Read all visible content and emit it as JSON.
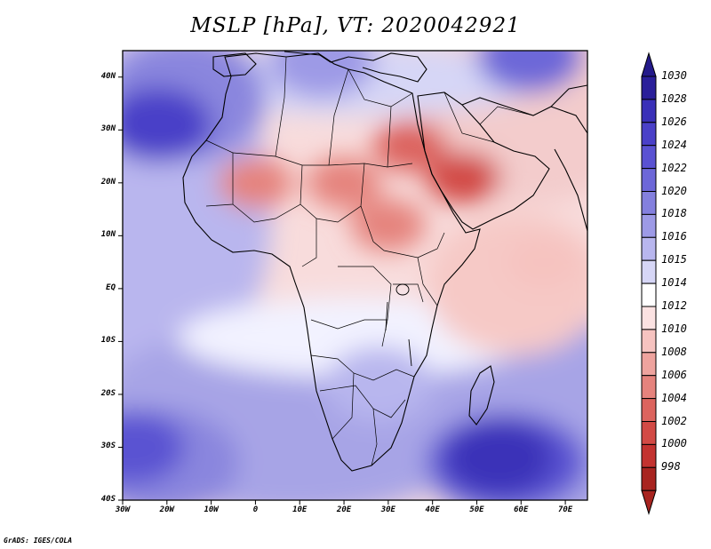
{
  "title": "MSLP [hPa], VT: 2020042921",
  "credit": "GrADS: IGES/COLA",
  "map": {
    "lon_range": [
      -30,
      75
    ],
    "lat_range": [
      -40,
      45
    ],
    "lat_ticks": [
      {
        "value": 40,
        "label": "40N"
      },
      {
        "value": 30,
        "label": "30N"
      },
      {
        "value": 20,
        "label": "20N"
      },
      {
        "value": 10,
        "label": "10N"
      },
      {
        "value": 0,
        "label": "EQ"
      },
      {
        "value": -10,
        "label": "10S"
      },
      {
        "value": -20,
        "label": "20S"
      },
      {
        "value": -30,
        "label": "30S"
      },
      {
        "value": -40,
        "label": "40S"
      }
    ],
    "lon_ticks": [
      {
        "value": -30,
        "label": "30W"
      },
      {
        "value": -20,
        "label": "20W"
      },
      {
        "value": -10,
        "label": "10W"
      },
      {
        "value": 0,
        "label": "0"
      },
      {
        "value": 10,
        "label": "10E"
      },
      {
        "value": 20,
        "label": "20E"
      },
      {
        "value": 30,
        "label": "30E"
      },
      {
        "value": 40,
        "label": "40E"
      },
      {
        "value": 50,
        "label": "50E"
      },
      {
        "value": 60,
        "label": "60E"
      },
      {
        "value": 70,
        "label": "70E"
      }
    ]
  },
  "colorbar": {
    "levels": [
      {
        "label": "1030",
        "color": "#2a1f9a"
      },
      {
        "label": "1028",
        "color": "#3a30b8"
      },
      {
        "label": "1026",
        "color": "#4a40c8"
      },
      {
        "label": "1024",
        "color": "#5a52d2"
      },
      {
        "label": "1022",
        "color": "#6d67d8"
      },
      {
        "label": "1020",
        "color": "#8480de"
      },
      {
        "label": "1018",
        "color": "#9d9ae6"
      },
      {
        "label": "1016",
        "color": "#b8b6ee"
      },
      {
        "label": "1015",
        "color": "#d6d6f6"
      },
      {
        "label": "1014",
        "color": "#ffffff"
      },
      {
        "label": "1012",
        "color": "#fbe2e2"
      },
      {
        "label": "1010",
        "color": "#f6c3c0"
      },
      {
        "label": "1008",
        "color": "#eea39e"
      },
      {
        "label": "1006",
        "color": "#e5837d"
      },
      {
        "label": "1004",
        "color": "#dc645e"
      },
      {
        "label": "1002",
        "color": "#d24a45"
      },
      {
        "label": "1000",
        "color": "#c33330"
      },
      {
        "label": "998",
        "color": "#a82420"
      }
    ],
    "top_arrow_color": "#241a8a",
    "bottom_arrow_color": "#a82420"
  },
  "pressure_features": [
    {
      "kind": "low",
      "lon": 47,
      "lat": 21,
      "value": 1002
    },
    {
      "kind": "low",
      "lon": 35,
      "lat": 27,
      "value": 1004
    },
    {
      "kind": "low",
      "lon": 20,
      "lat": 20,
      "value": 1006
    },
    {
      "kind": "low",
      "lon": 0,
      "lat": 20,
      "value": 1007
    },
    {
      "kind": "low",
      "lon": 30,
      "lat": 12,
      "value": 1006
    },
    {
      "kind": "low",
      "lon": 65,
      "lat": 5,
      "value": 1010
    },
    {
      "kind": "high",
      "lon": -22,
      "lat": 31,
      "value": 1026
    },
    {
      "kind": "high",
      "lon": -28,
      "lat": -30,
      "value": 1024
    },
    {
      "kind": "high",
      "lon": 55,
      "lat": -32,
      "value": 1028
    },
    {
      "kind": "high",
      "lon": 15,
      "lat": 43,
      "value": 1018
    },
    {
      "kind": "high",
      "lon": 62,
      "lat": 44,
      "value": 1022
    },
    {
      "kind": "high",
      "lon": 28,
      "lat": -18,
      "value": 1016
    }
  ]
}
